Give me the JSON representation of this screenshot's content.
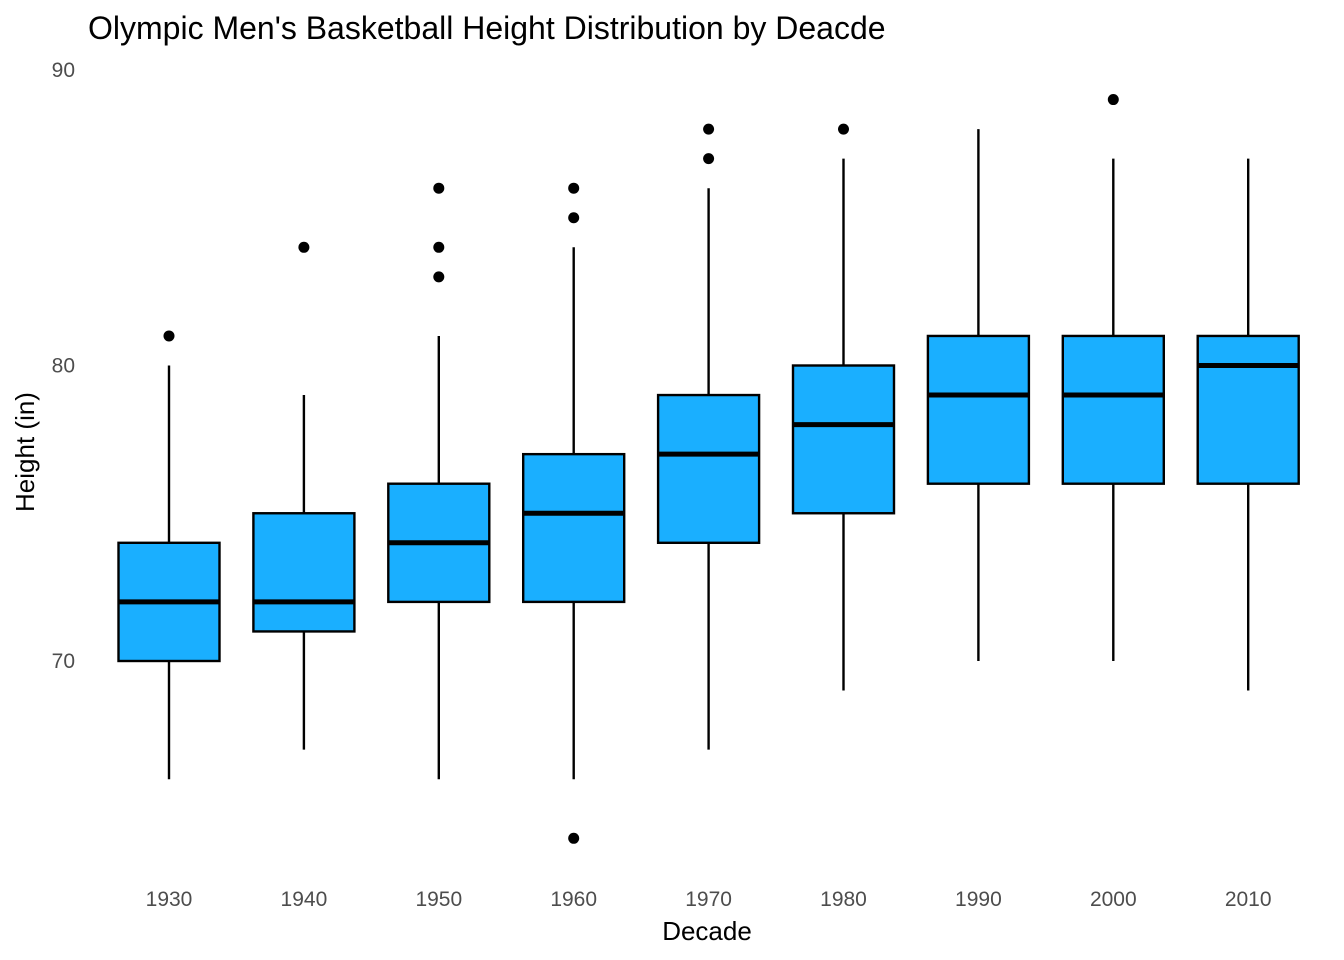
{
  "chart_data": {
    "type": "boxplot",
    "title": "Olympic Men's Basketball Height Distribution by Deacde",
    "xlabel": "Decade",
    "ylabel": "Height (in)",
    "ylim": [
      63.4,
      90
    ],
    "yticks": [
      70,
      80,
      90
    ],
    "grid": false,
    "legend": "none",
    "box_color": "#1AAFFF",
    "line_color": "#000000",
    "categories": [
      "1930",
      "1940",
      "1950",
      "1960",
      "1970",
      "1980",
      "1990",
      "2000",
      "2010"
    ],
    "boxes": [
      {
        "decade": "1930",
        "whisker_low": 66,
        "q1": 70,
        "median": 72,
        "q3": 74,
        "whisker_high": 80,
        "outliers": [
          81
        ]
      },
      {
        "decade": "1940",
        "whisker_low": 67,
        "q1": 71,
        "median": 72,
        "q3": 75,
        "whisker_high": 79,
        "outliers": [
          84
        ]
      },
      {
        "decade": "1950",
        "whisker_low": 66,
        "q1": 72,
        "median": 74,
        "q3": 76,
        "whisker_high": 81,
        "outliers": [
          83,
          84,
          86
        ]
      },
      {
        "decade": "1960",
        "whisker_low": 66,
        "q1": 72,
        "median": 75,
        "q3": 77,
        "whisker_high": 84,
        "outliers": [
          64,
          85,
          86
        ]
      },
      {
        "decade": "1970",
        "whisker_low": 67,
        "q1": 74,
        "median": 77,
        "q3": 79,
        "whisker_high": 86,
        "outliers": [
          87,
          88
        ]
      },
      {
        "decade": "1980",
        "whisker_low": 69,
        "q1": 75,
        "median": 78,
        "q3": 80,
        "whisker_high": 87,
        "outliers": [
          88
        ]
      },
      {
        "decade": "1990",
        "whisker_low": 70,
        "q1": 76,
        "median": 79,
        "q3": 81,
        "whisker_high": 88,
        "outliers": []
      },
      {
        "decade": "2000",
        "whisker_low": 70,
        "q1": 76,
        "median": 79,
        "q3": 81,
        "whisker_high": 87,
        "outliers": [
          89
        ]
      },
      {
        "decade": "2010",
        "whisker_low": 69,
        "q1": 76,
        "median": 80,
        "q3": 81,
        "whisker_high": 87,
        "outliers": []
      }
    ]
  }
}
